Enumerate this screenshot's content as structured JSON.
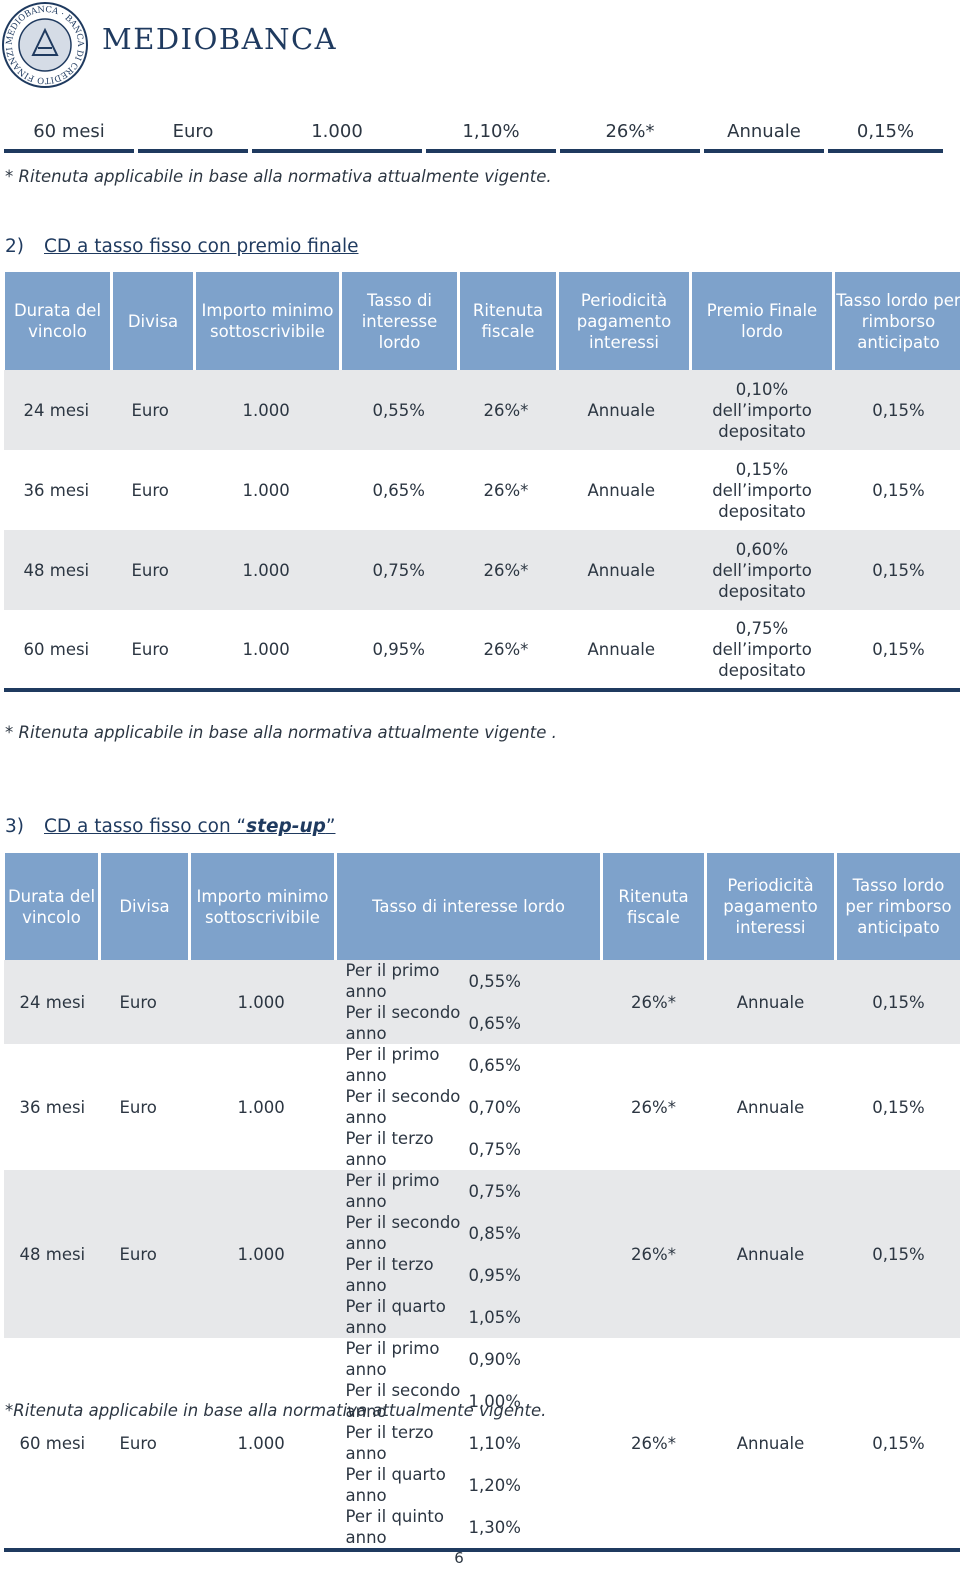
{
  "header": {
    "brand": "MEDIOBANCA",
    "seal": "MEDIOBANCA · BANCA DI CREDITO FINANZIARIO"
  },
  "top_row": [
    "60 mesi",
    "Euro",
    "1.000",
    "1,10%",
    "26%*",
    "Annuale",
    "0,15%"
  ],
  "top_note": "* Ritenuta applicabile in base alla normativa attualmente vigente.",
  "section2": {
    "number": "2)",
    "title": "CD a tasso fisso con premio finale",
    "headers": [
      "Durata del vincolo",
      "Divisa",
      "Importo minimo sottoscrivibile",
      "Tasso di interesse lordo",
      "Ritenuta fiscale",
      "Periodicità pagamento interessi",
      "Premio Finale lordo",
      "Tasso lordo per rimborso anticipato"
    ],
    "rows": [
      [
        "24 mesi",
        "Euro",
        "1.000",
        "0,55%",
        "26%*",
        "Annuale",
        "0,10% dell’importo depositato",
        "0,15%"
      ],
      [
        "36 mesi",
        "Euro",
        "1.000",
        "0,65%",
        "26%*",
        "Annuale",
        "0,15% dell’importo depositato",
        "0,15%"
      ],
      [
        "48 mesi",
        "Euro",
        "1.000",
        "0,75%",
        "26%*",
        "Annuale",
        "0,60% dell’importo depositato",
        "0,15%"
      ],
      [
        "60 mesi",
        "Euro",
        "1.000",
        "0,95%",
        "26%*",
        "Annuale",
        "0,75% dell’importo depositato",
        "0,15%"
      ]
    ],
    "note": "* Ritenuta applicabile in base alla normativa attualmente vigente ."
  },
  "section3": {
    "number": "3)",
    "title_pre": "CD a tasso fisso con “",
    "title_em": "step-up",
    "title_post": "”",
    "headers": [
      "Durata del vincolo",
      "Divisa",
      "Importo minimo sottoscrivibile",
      "Tasso di interesse lordo",
      "Ritenuta fiscale",
      "Periodicità pagamento interessi",
      "Tasso lordo per rimborso anticipato"
    ],
    "rows": [
      {
        "durata": "24 mesi",
        "divisa": "Euro",
        "importo": "1.000",
        "rates": [
          [
            "Per il primo anno",
            "0,55%"
          ],
          [
            "Per il secondo anno",
            "0,65%"
          ]
        ],
        "ritenuta": "26%*",
        "periodicita": "Annuale",
        "rimborso": "0,15%"
      },
      {
        "durata": "36 mesi",
        "divisa": "Euro",
        "importo": "1.000",
        "rates": [
          [
            "Per il primo anno",
            "0,65%"
          ],
          [
            "Per il secondo anno",
            "0,70%"
          ],
          [
            "Per il terzo anno",
            "0,75%"
          ]
        ],
        "ritenuta": "26%*",
        "periodicita": "Annuale",
        "rimborso": "0,15%"
      },
      {
        "durata": "48 mesi",
        "divisa": "Euro",
        "importo": "1.000",
        "rates": [
          [
            "Per il primo anno",
            "0,75%"
          ],
          [
            "Per il secondo anno",
            "0,85%"
          ],
          [
            "Per il terzo anno",
            "0,95%"
          ],
          [
            "Per il quarto anno",
            "1,05%"
          ]
        ],
        "ritenuta": "26%*",
        "periodicita": "Annuale",
        "rimborso": "0,15%"
      },
      {
        "durata": "60 mesi",
        "divisa": "Euro",
        "importo": "1.000",
        "rates": [
          [
            "Per il primo anno",
            "0,90%"
          ],
          [
            "Per il secondo anno",
            "1,00%"
          ],
          [
            "Per il terzo anno",
            "1,10%"
          ],
          [
            "Per il quarto anno",
            "1,20%"
          ],
          [
            "Per il quinto anno",
            "1,30%"
          ]
        ],
        "ritenuta": "26%*",
        "periodicita": "Annuale",
        "rimborso": "0,15%"
      }
    ],
    "note": "*Ritenuta applicabile in base alla normativa attualmente vigente."
  },
  "page_number": "6"
}
